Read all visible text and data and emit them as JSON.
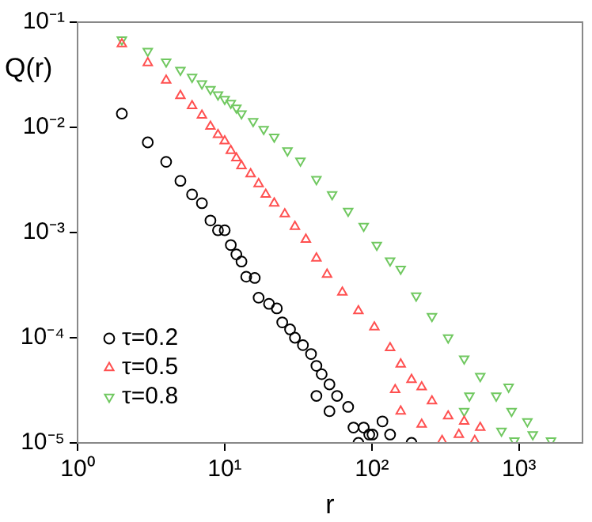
{
  "chart_data": {
    "type": "scatter",
    "xlabel": "r",
    "ylabel": "Q(r)",
    "log": "xy",
    "grid": false,
    "legend": "bottom left",
    "xlim": [
      1,
      2700
    ],
    "ylim": [
      1e-05,
      0.1
    ],
    "xticks": [
      {
        "value": 1,
        "label": "10⁰"
      },
      {
        "value": 10,
        "label": "10¹"
      },
      {
        "value": 100,
        "label": "10²"
      },
      {
        "value": 1000,
        "label": "10³"
      }
    ],
    "yticks": [
      {
        "value": 1e-05,
        "label": "10⁻⁵"
      },
      {
        "value": 0.0001,
        "label": "10⁻⁴"
      },
      {
        "value": 0.001,
        "label": "10⁻³"
      },
      {
        "value": 0.01,
        "label": "10⁻²"
      },
      {
        "value": 0.1,
        "label": "10⁻¹"
      }
    ],
    "series": [
      {
        "name": "τ=0.2",
        "color": "#000000",
        "marker": "circle",
        "x": [
          2,
          3,
          4,
          5,
          6,
          7,
          8,
          9,
          10,
          11,
          12,
          13,
          14,
          16,
          17,
          20,
          22.6,
          24.6,
          27.8,
          30,
          34,
          38.6,
          42,
          45.6,
          51.5,
          58,
          42,
          51.5,
          69,
          75,
          88,
          96,
          101,
          118,
          81,
          133,
          186
        ],
        "values": [
          0.0135,
          0.0072,
          0.0047,
          0.0031,
          0.0023,
          0.0019,
          0.0013,
          0.00105,
          0.00105,
          0.00076,
          0.00062,
          0.00053,
          0.00038,
          0.00037,
          0.00024,
          0.00021,
          0.00019,
          0.00014,
          0.00012,
          0.0001,
          8.5e-05,
          7e-05,
          5.4e-05,
          4.5e-05,
          3.6e-05,
          2.8e-05,
          2.8e-05,
          2e-05,
          2.2e-05,
          1.4e-05,
          1.4e-05,
          1.2e-05,
          1.2e-05,
          1.6e-05,
          1e-05,
          1.2e-05,
          1e-05
        ]
      },
      {
        "name": "τ=0.5",
        "color": "#ff5050",
        "marker": "triangle",
        "x": [
          2,
          3,
          4,
          5,
          6,
          7,
          8,
          9,
          10,
          11,
          12,
          13,
          15,
          17,
          19,
          21.7,
          25.6,
          30,
          35.6,
          42,
          49.6,
          63,
          81,
          104,
          133,
          157,
          186,
          144,
          218,
          157,
          256,
          330,
          424,
          218,
          545,
          390,
          500,
          300
        ],
        "values": [
          0.062,
          0.041,
          0.028,
          0.02,
          0.016,
          0.013,
          0.0102,
          0.0085,
          0.0074,
          0.006,
          0.0051,
          0.0043,
          0.0036,
          0.0029,
          0.0023,
          0.0019,
          0.0015,
          0.00114,
          0.00086,
          0.00057,
          0.0004,
          0.00027,
          0.00018,
          0.000126,
          8e-05,
          5.6e-05,
          4e-05,
          3.2e-05,
          3.4e-05,
          2e-05,
          2.5e-05,
          1.8e-05,
          1.6e-05,
          1.5e-05,
          1.4e-05,
          1.2e-05,
          1.05e-05,
          1.05e-05
        ]
      },
      {
        "name": "τ=0.8",
        "color": "#70c860",
        "marker": "triangle-down",
        "x": [
          2,
          3,
          4,
          5,
          6,
          7,
          8,
          9,
          10,
          11,
          12,
          13,
          15.6,
          18.4,
          21.7,
          26.7,
          32.7,
          42,
          53.7,
          69,
          88,
          108,
          133,
          157,
          200,
          256,
          330,
          424,
          545,
          700,
          850,
          890,
          1140,
          1240,
          1650,
          460,
          760,
          930,
          424
        ],
        "values": [
          0.068,
          0.053,
          0.042,
          0.035,
          0.03,
          0.026,
          0.023,
          0.0204,
          0.0185,
          0.017,
          0.0153,
          0.0135,
          0.0114,
          0.0096,
          0.0081,
          0.006,
          0.0048,
          0.0032,
          0.0023,
          0.0016,
          0.00115,
          0.00076,
          0.00054,
          0.00045,
          0.00025,
          0.00016,
          0.0001,
          6.3e-05,
          4.3e-05,
          2.8e-05,
          3.4e-05,
          2e-05,
          1.6e-05,
          1.2e-05,
          1.05e-05,
          2.8e-05,
          1.3e-05,
          1.05e-05,
          2e-05
        ]
      }
    ]
  }
}
